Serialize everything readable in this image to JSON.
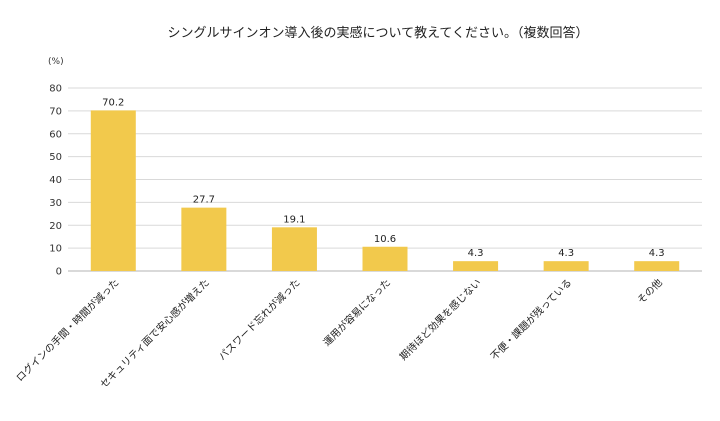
{
  "chart_data": {
    "type": "bar",
    "title": "シングルサインオン導入後の実感について教えてください。（複数回答）",
    "ylabel": "(%)",
    "xlabel": "",
    "ylim": [
      0,
      80
    ],
    "yticks": [
      0,
      10,
      20,
      30,
      40,
      50,
      60,
      70,
      80
    ],
    "grid": true,
    "categories": [
      "ログインの手間・時間が減った",
      "セキュリティ面で安心感が増えた",
      "パスワード忘れが減った",
      "運用が容易になった",
      "期待ほど効果を感じない",
      "不便・課題が残っている",
      "その他"
    ],
    "values": [
      70.2,
      27.7,
      19.1,
      10.6,
      4.3,
      4.3,
      4.3
    ],
    "data_labels": [
      "70.2",
      "27.7",
      "19.1",
      "10.6",
      "4.3",
      "4.3",
      "4.3"
    ],
    "bar_color": "#f2c94c"
  }
}
